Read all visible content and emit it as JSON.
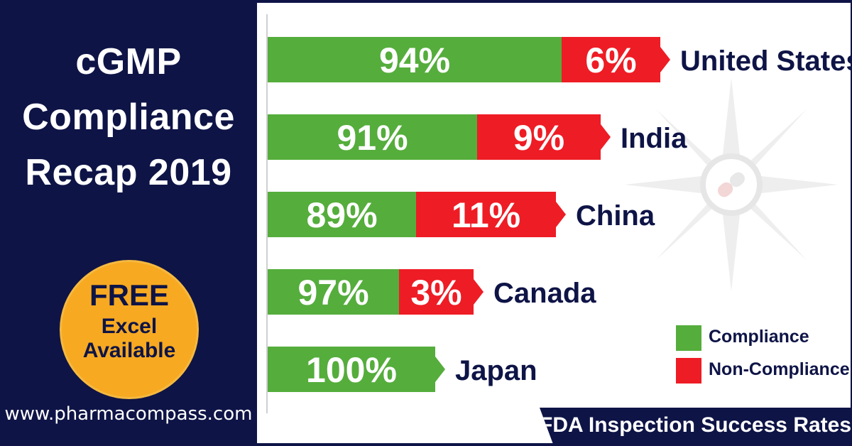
{
  "header": {
    "title_lines": [
      "cGMP",
      "Compliance",
      "Recap 2019"
    ]
  },
  "badge": {
    "line1": "FREE",
    "line2": "Excel",
    "line3": "Available",
    "color": "#f7a921"
  },
  "website": "www.pharmacompass.com",
  "footer": {
    "text": "FDA Inspection Success Rates"
  },
  "legend": {
    "compliance": "Compliance",
    "non_compliance": "Non-Compliance"
  },
  "colors": {
    "navy": "#0e1446",
    "compliance": "#55ad3c",
    "non_compliance": "#ee1c25"
  },
  "chart_data": {
    "type": "bar",
    "orientation": "horizontal",
    "stacked": true,
    "categories": [
      "United States",
      "India",
      "China",
      "Canada",
      "Japan"
    ],
    "series": [
      {
        "name": "Compliance",
        "values": [
          94,
          91,
          89,
          97,
          100
        ],
        "labels": [
          "94%",
          "91%",
          "89%",
          "97%",
          "100%"
        ]
      },
      {
        "name": "Non-Compliance",
        "values": [
          6,
          9,
          11,
          3,
          0
        ],
        "labels": [
          "6%",
          "9%",
          "11%",
          "3%",
          ""
        ]
      }
    ],
    "legend_position": "bottom-right",
    "grid": false
  }
}
